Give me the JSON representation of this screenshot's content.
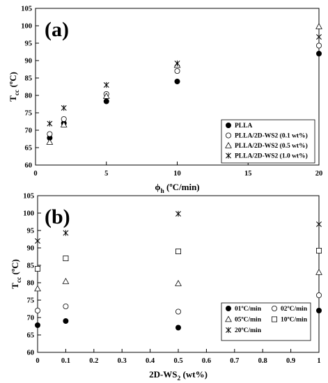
{
  "chart_data": [
    {
      "type": "scatter",
      "panel_label": "(a)",
      "xlabel": {
        "main": "ϕ",
        "sub": "h",
        "tail": " (ºC/min)"
      },
      "ylabel": {
        "main": "T",
        "sub": "cc",
        "tail": " (ºC)"
      },
      "xlim": [
        0,
        20
      ],
      "ylim": [
        60,
        105
      ],
      "xticks": [
        0,
        5,
        10,
        15,
        20
      ],
      "yticks": [
        60,
        65,
        70,
        75,
        80,
        85,
        90,
        95,
        100,
        105
      ],
      "grid": false,
      "legend_position": "bottom-right",
      "legend_columns": 1,
      "series": [
        {
          "name": "PLLA",
          "marker": "filled-circle",
          "x": [
            1,
            2,
            5,
            10,
            20
          ],
          "y": [
            67.8,
            72.0,
            78.3,
            84.0,
            92.0
          ]
        },
        {
          "name": "PLLA/2D-WS2 (0.1 wt%)",
          "marker": "open-circle",
          "x": [
            1,
            2,
            5,
            10,
            20
          ],
          "y": [
            68.9,
            73.2,
            80.4,
            87.0,
            94.3
          ]
        },
        {
          "name": "PLLA/2D-WS2 (0.5 wt%)",
          "marker": "open-triangle",
          "x": [
            1,
            2,
            5,
            10,
            20
          ],
          "y": [
            66.6,
            71.6,
            79.8,
            88.7,
            99.8
          ]
        },
        {
          "name": "PLLA/2D-WS2 (1.0 wt%)",
          "marker": "asterisk",
          "x": [
            1,
            2,
            5,
            10,
            20
          ],
          "y": [
            71.9,
            76.4,
            83.0,
            89.2,
            96.8
          ]
        }
      ]
    },
    {
      "type": "scatter",
      "panel_label": "(b)",
      "xlabel": {
        "main": "2D-WS",
        "sub": "2",
        "tail": " (wt%)"
      },
      "ylabel": {
        "main": "T",
        "sub": "cc",
        "tail": " (ºC)"
      },
      "xlim": [
        0,
        1
      ],
      "ylim": [
        60,
        105
      ],
      "xticks": [
        0,
        0.1,
        0.2,
        0.3,
        0.4,
        0.5,
        0.6,
        0.7,
        0.8,
        0.9,
        1
      ],
      "yticks": [
        60,
        65,
        70,
        75,
        80,
        85,
        90,
        95,
        100,
        105
      ],
      "grid": false,
      "legend_position": "bottom-right",
      "legend_columns": 2,
      "series": [
        {
          "name": "01ºC/min",
          "marker": "filled-circle",
          "x": [
            0,
            0.1,
            0.5,
            1
          ],
          "y": [
            67.8,
            69.0,
            67.1,
            72.0
          ]
        },
        {
          "name": "02ºC/min",
          "marker": "open-circle",
          "x": [
            0,
            0.1,
            0.5,
            1
          ],
          "y": [
            72.0,
            73.2,
            71.7,
            76.4
          ]
        },
        {
          "name": "05ºC/min",
          "marker": "open-triangle",
          "x": [
            0,
            0.1,
            0.5,
            1
          ],
          "y": [
            78.3,
            80.4,
            79.8,
            83.0
          ]
        },
        {
          "name": "10ºC/min",
          "marker": "open-square",
          "x": [
            0,
            0.1,
            0.5,
            1
          ],
          "y": [
            84.0,
            87.0,
            89.0,
            89.2
          ]
        },
        {
          "name": "20ºC/min",
          "marker": "asterisk",
          "x": [
            0,
            0.1,
            0.5,
            1
          ],
          "y": [
            92.0,
            94.3,
            99.8,
            96.8
          ]
        }
      ]
    }
  ]
}
